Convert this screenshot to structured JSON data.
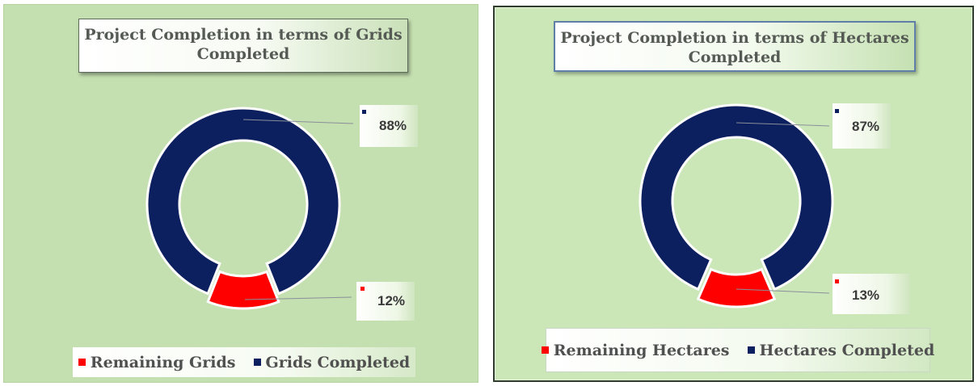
{
  "chart_data": [
    {
      "type": "pie",
      "subtype": "doughnut",
      "title": "Project Completion in terms of Grids Completed",
      "categories": [
        "Remaining Grids",
        "Grids Completed"
      ],
      "values": [
        12,
        88
      ],
      "labels": [
        "12%",
        "88%"
      ],
      "colors": [
        "#ff0000",
        "#0c1f5e"
      ],
      "legend_position": "bottom"
    },
    {
      "type": "pie",
      "subtype": "doughnut",
      "title": "Project Completion in terms of Hectares Completed",
      "categories": [
        "Remaining Hectares",
        "Hectares Completed"
      ],
      "values": [
        13,
        87
      ],
      "labels": [
        "13%",
        "87%"
      ],
      "colors": [
        "#ff0000",
        "#0c1f5e"
      ],
      "legend_position": "bottom"
    }
  ]
}
